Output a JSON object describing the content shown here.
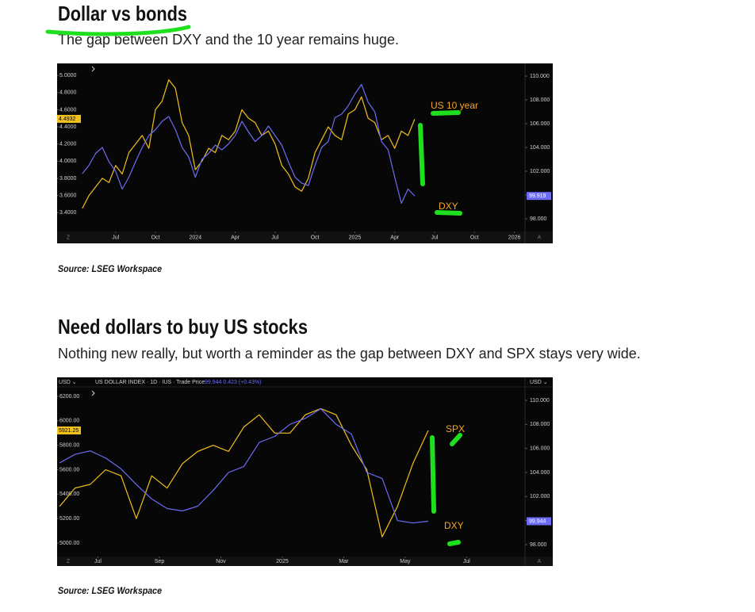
{
  "chart_data": [
    {
      "type": "line",
      "title": "Dollar vs bonds",
      "subtitle": "The gap between DXY and the 10 year remains huge.",
      "source": "Source: LSEG Workspace",
      "x": [
        3.5,
        4,
        4.5,
        5,
        5.5,
        6,
        6.5,
        7,
        7.5,
        8,
        8.5,
        9,
        9.5,
        10,
        10.5,
        11,
        11.5,
        12,
        12.5,
        13,
        13.5,
        14,
        14.5,
        15,
        15.5,
        16,
        16.5,
        17,
        17.5,
        18,
        18.5,
        19,
        19.5,
        20,
        20.5,
        21,
        21.5,
        22,
        22.5,
        23,
        23.5,
        24,
        24.5,
        25,
        25.5,
        26,
        26.5,
        27,
        27.5,
        28,
        28.5
      ],
      "xlim": [
        1.6,
        36.8
      ],
      "xticks": [
        {
          "value": 6,
          "label": "Jul"
        },
        {
          "value": 9,
          "label": "Oct"
        },
        {
          "value": 12,
          "label": "2024"
        },
        {
          "value": 15,
          "label": "Apr"
        },
        {
          "value": 18,
          "label": "Jul"
        },
        {
          "value": 21,
          "label": "Oct"
        },
        {
          "value": 24,
          "label": "2025"
        },
        {
          "value": 27,
          "label": "Apr"
        },
        {
          "value": 30,
          "label": "Jul"
        },
        {
          "value": 33,
          "label": "Oct"
        },
        {
          "value": 36,
          "label": "2026"
        }
      ],
      "ylim": [
        3.18,
        5.14
      ],
      "yticks": [
        {
          "value": 5,
          "label": "5.0000"
        },
        {
          "value": 4.8,
          "label": "4.8000"
        },
        {
          "value": 4.6,
          "label": "4.6000"
        },
        {
          "value": 4.4,
          "label": "4.4000"
        },
        {
          "value": 4.2,
          "label": "4.2000"
        },
        {
          "value": 4,
          "label": "4.0000"
        },
        {
          "value": 3.8,
          "label": "3.8000"
        },
        {
          "value": 3.6,
          "label": "3.6000"
        },
        {
          "value": 3.4,
          "label": "3.4000"
        }
      ],
      "y2lim": [
        96.93,
        111.07
      ],
      "y2ticks": [
        {
          "value": 110,
          "label": "110.000"
        },
        {
          "value": 108,
          "label": "108.000"
        },
        {
          "value": 106,
          "label": "106.000"
        },
        {
          "value": 104,
          "label": "104.000"
        },
        {
          "value": 102,
          "label": "102.000"
        },
        {
          "value": 100,
          "label": "100.000"
        },
        {
          "value": 98,
          "label": "98.000"
        }
      ],
      "axis_buttons": [
        "Z",
        "A"
      ],
      "annotations": [
        "US 10 year",
        "DXY"
      ],
      "series": [
        {
          "name": "US 10 year",
          "color": "#f2c01a",
          "last_value": 4.4932,
          "values": [
            3.45,
            3.6,
            3.7,
            3.8,
            3.75,
            3.95,
            3.85,
            4.1,
            4.2,
            4.3,
            4.15,
            4.6,
            4.7,
            4.95,
            4.85,
            4.45,
            4.3,
            3.9,
            4.0,
            4.15,
            4.1,
            4.3,
            4.25,
            4.35,
            4.6,
            4.5,
            4.45,
            4.3,
            4.35,
            4.2,
            3.95,
            3.85,
            3.7,
            3.65,
            3.8,
            4.1,
            4.25,
            4.4,
            4.3,
            4.25,
            4.55,
            4.6,
            4.75,
            4.5,
            4.45,
            4.25,
            4.3,
            4.15,
            4.35,
            4.3,
            4.49
          ]
        },
        {
          "name": "DXY",
          "color": "#6b6cf2",
          "axis": "y2",
          "last_value": 99.919,
          "values": [
            101.8,
            102.5,
            103.5,
            104.0,
            102.8,
            102.0,
            100.5,
            101.5,
            102.8,
            104.0,
            105.0,
            105.5,
            106.2,
            106.6,
            105.5,
            104.0,
            103.2,
            101.5,
            103.0,
            103.5,
            104.2,
            103.8,
            104.3,
            105.0,
            106.2,
            105.3,
            104.5,
            105.0,
            105.8,
            105.0,
            104.2,
            102.8,
            101.5,
            101.0,
            100.8,
            102.5,
            104.0,
            104.5,
            106.5,
            106.8,
            107.5,
            108.5,
            109.3,
            107.8,
            107.0,
            104.5,
            103.8,
            101.5,
            99.3,
            100.5,
            99.92
          ]
        }
      ]
    },
    {
      "type": "line",
      "title": "Need dollars to buy US stocks",
      "subtitle": "Nothing new really, but worth a reminder as the gap between DXY and SPX stays very wide.",
      "source": "Source: LSEG Workspace",
      "header": {
        "left": "USD ⌄",
        "symbol": "US DOLLAR INDEX · 1D · IUS · Trade Price",
        "quote": "99.944  0.423 (+0.43%)",
        "right": "USD ⌄"
      },
      "x": [
        4.75,
        5.25,
        5.75,
        6.25,
        6.75,
        7.25,
        7.75,
        8.25,
        8.75,
        9.25,
        9.75,
        10.25,
        10.75,
        11.25,
        11.75,
        12.25,
        12.75,
        13.25,
        13.75,
        14.25,
        14.75,
        15.25,
        15.75,
        16.25,
        16.75
      ],
      "xlim": [
        4.67,
        19.9
      ],
      "xticks": [
        {
          "value": 6,
          "label": "Jul"
        },
        {
          "value": 8,
          "label": "Sep"
        },
        {
          "value": 10,
          "label": "Nov"
        },
        {
          "value": 12,
          "label": "2025"
        },
        {
          "value": 14,
          "label": "Mar"
        },
        {
          "value": 16,
          "label": "May"
        },
        {
          "value": 18,
          "label": "Jul"
        }
      ],
      "ylim": [
        4890,
        6278
      ],
      "yticks": [
        {
          "value": 6200,
          "label": "6200.00"
        },
        {
          "value": 6000,
          "label": "6000.00"
        },
        {
          "value": 5800,
          "label": "5800.00"
        },
        {
          "value": 5600,
          "label": "5600.00"
        },
        {
          "value": 5400,
          "label": "5400.00"
        },
        {
          "value": 5200,
          "label": "5200.00"
        },
        {
          "value": 5000,
          "label": "5000.00"
        }
      ],
      "y2lim": [
        97.01,
        111.12
      ],
      "y2ticks": [
        {
          "value": 110,
          "label": "110.000"
        },
        {
          "value": 108,
          "label": "108.000"
        },
        {
          "value": 106,
          "label": "106.000"
        },
        {
          "value": 104,
          "label": "104.000"
        },
        {
          "value": 102,
          "label": "102.000"
        },
        {
          "value": 100,
          "label": "100.000"
        },
        {
          "value": 98,
          "label": "98.000"
        }
      ],
      "axis_buttons": [
        "Z",
        "A"
      ],
      "annotations": [
        "SPX",
        "DXY"
      ],
      "series": [
        {
          "name": "SPX",
          "color": "#f2c01a",
          "last_value": 5921.25,
          "values": [
            5300,
            5450,
            5480,
            5600,
            5550,
            5200,
            5550,
            5450,
            5650,
            5750,
            5800,
            5750,
            5950,
            6050,
            5900,
            5900,
            6050,
            6100,
            6050,
            5800,
            5600,
            5050,
            5300,
            5650,
            5921.25
          ]
        },
        {
          "name": "DXY",
          "color": "#6b6cf2",
          "axis": "y2",
          "last_value": 99.944,
          "values": [
            104.8,
            105.5,
            105.8,
            105.2,
            104.3,
            103.0,
            101.8,
            101.0,
            100.8,
            101.2,
            102.5,
            104.0,
            104.5,
            106.5,
            107.0,
            108.0,
            108.5,
            109.3,
            108.0,
            107.2,
            104.0,
            103.5,
            100.0,
            99.8,
            99.944
          ]
        }
      ]
    }
  ]
}
